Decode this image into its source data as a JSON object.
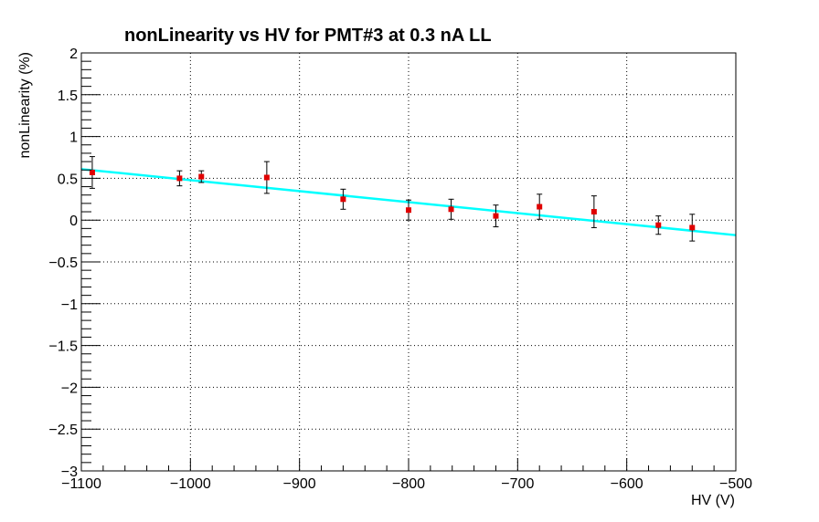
{
  "chart_data": {
    "type": "scatter",
    "title": "nonLinearity vs HV for PMT#3 at 0.3 nA LL",
    "xlabel": "HV (V)",
    "ylabel": "nonLinearity (%)",
    "xlim": [
      -1100,
      -500
    ],
    "ylim": [
      -3,
      2
    ],
    "grid": true,
    "x_ticks": [
      -1100,
      -1000,
      -900,
      -800,
      -700,
      -600,
      -500
    ],
    "x_tick_labels": [
      "−1100",
      "−1000",
      "−900",
      "−800",
      "−700",
      "−600",
      "−500"
    ],
    "y_ticks": [
      2,
      1.5,
      1,
      0.5,
      0,
      -0.5,
      -1,
      -1.5,
      -2,
      -2.5,
      -3
    ],
    "y_tick_labels": [
      "2",
      "1.5",
      "1",
      "0.5",
      "0",
      "−0.5",
      "−1",
      "−1.5",
      "−2",
      "−2.5",
      "−3"
    ],
    "series": [
      {
        "marker_color": "#e00000",
        "error_color": "#000000",
        "points": [
          {
            "x": -1090,
            "y": 0.57,
            "err": 0.19
          },
          {
            "x": -1010,
            "y": 0.5,
            "err": 0.09
          },
          {
            "x": -990,
            "y": 0.52,
            "err": 0.07
          },
          {
            "x": -930,
            "y": 0.51,
            "err": 0.19
          },
          {
            "x": -860,
            "y": 0.25,
            "err": 0.12
          },
          {
            "x": -800,
            "y": 0.12,
            "err": 0.12
          },
          {
            "x": -761,
            "y": 0.13,
            "err": 0.12
          },
          {
            "x": -720,
            "y": 0.05,
            "err": 0.13
          },
          {
            "x": -680,
            "y": 0.16,
            "err": 0.15
          },
          {
            "x": -630,
            "y": 0.1,
            "err": 0.19
          },
          {
            "x": -571,
            "y": -0.06,
            "err": 0.11
          },
          {
            "x": -540,
            "y": -0.09,
            "err": 0.16
          }
        ]
      }
    ],
    "fit_line": {
      "color": "#00ffff",
      "x": [
        -1100,
        -500
      ],
      "y": [
        0.61,
        -0.18
      ]
    }
  }
}
